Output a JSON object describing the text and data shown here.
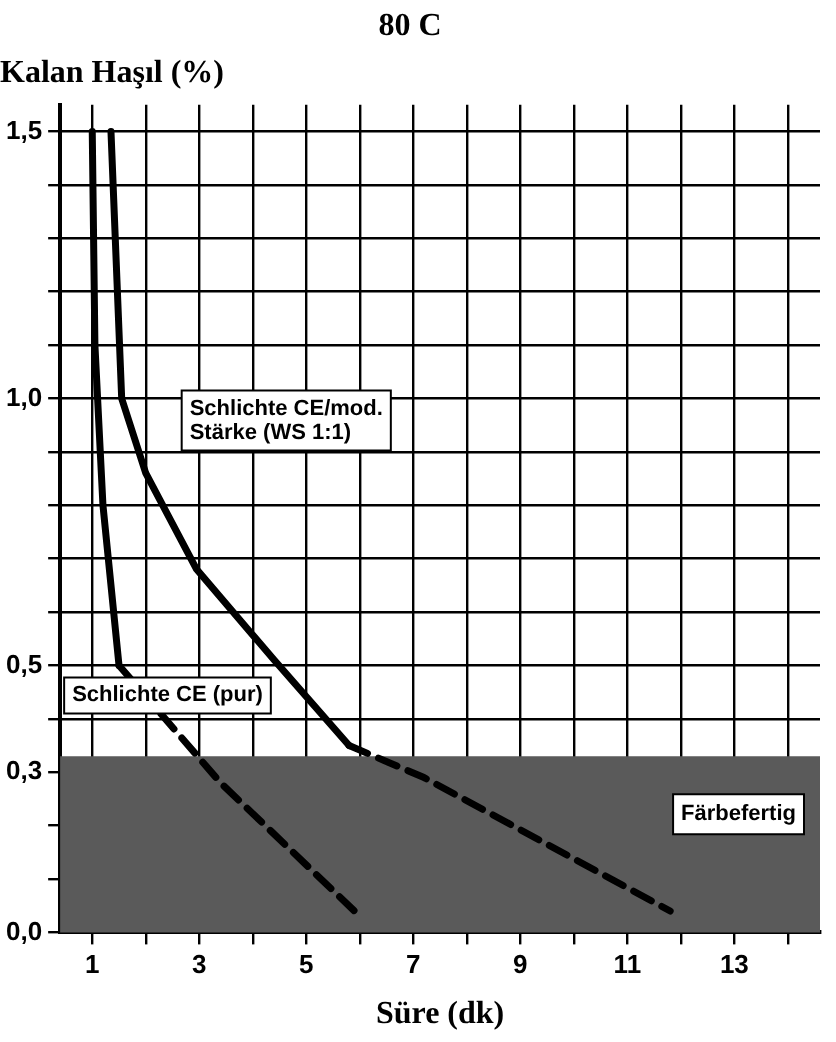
{
  "chart_data": {
    "type": "line",
    "title": "80 C",
    "xlabel": "Süre (dk)",
    "ylabel": "Kalan Haşıl (%)",
    "xlim": [
      0.4,
      14.6
    ],
    "xticks": [
      1,
      {
        "value": 2,
        "label": null
      },
      3,
      {
        "value": 4,
        "label": null
      },
      5,
      {
        "value": 6,
        "label": null
      },
      7,
      {
        "value": 8,
        "label": null
      },
      9,
      {
        "value": 10,
        "label": null
      },
      11,
      {
        "value": 12,
        "label": null
      },
      13,
      {
        "value": 14,
        "label": null
      }
    ],
    "ylim": [
      0,
      1.55
    ],
    "yticks": [
      {
        "value": 0,
        "label": "0,0"
      },
      {
        "value": 0.1,
        "label": null
      },
      {
        "value": 0.2,
        "label": null
      },
      {
        "value": 0.3,
        "label": "0,3"
      },
      {
        "value": 0.4,
        "label": null
      },
      {
        "value": 0.5,
        "label": "0,5"
      },
      {
        "value": 0.6,
        "label": null
      },
      {
        "value": 0.7,
        "label": null
      },
      {
        "value": 0.8,
        "label": null
      },
      {
        "value": 0.9,
        "label": null
      },
      {
        "value": 1.0,
        "label": "1,0"
      },
      {
        "value": 1.1,
        "label": null
      },
      {
        "value": 1.2,
        "label": null
      },
      {
        "value": 1.3,
        "label": null
      },
      {
        "value": 1.4,
        "label": null
      },
      {
        "value": 1.5,
        "label": "1,5"
      }
    ],
    "grid": true,
    "legend": false,
    "bands": [
      {
        "axis": "y",
        "from": 0,
        "to": 0.33,
        "label": "Färbefertig",
        "color": "#5a5a5a"
      }
    ],
    "series": [
      {
        "name": "Schlichte CE (pur)",
        "color": "#000000",
        "x": [
          1.0,
          1.05,
          1.2,
          1.5
        ],
        "values": [
          1.5,
          1.1,
          0.8,
          0.5
        ]
      },
      {
        "color": "#000000",
        "line_style": "dashed",
        "x": [
          1.5,
          3.4,
          5.9
        ],
        "values": [
          0.5,
          0.28,
          0.04
        ]
      },
      {
        "name": "Schlichte CE/mod. Stärke (WS 1:1)",
        "color": "#000000",
        "x": [
          1.35,
          1.55,
          2.0,
          2.95,
          4.4,
          5.8
        ],
        "values": [
          1.5,
          1.0,
          0.86,
          0.68,
          0.51,
          0.35
        ]
      },
      {
        "color": "#000000",
        "line_style": "dashed",
        "x": [
          5.8,
          7.2,
          11.8
        ],
        "values": [
          0.35,
          0.29,
          0.04
        ]
      }
    ]
  }
}
